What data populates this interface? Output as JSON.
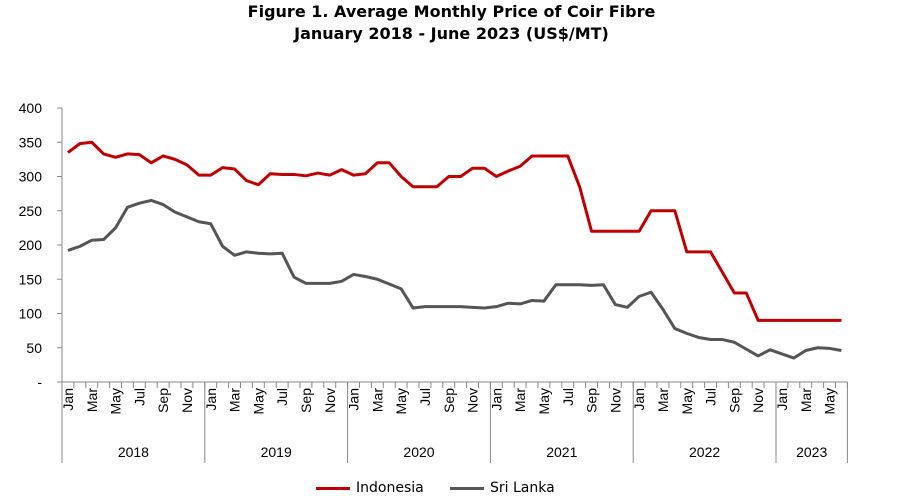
{
  "chart_data": {
    "type": "line",
    "title": "Figure 1. Average Monthly Price of Coir Fibre",
    "subtitle": "January 2018 - June 2023 (US$/MT)",
    "xlabel": "",
    "ylabel": "",
    "ylim": [
      0,
      400
    ],
    "yticks": [
      "-",
      "50",
      "100",
      "150",
      "200",
      "250",
      "300",
      "350",
      "400"
    ],
    "month_labels": [
      "Jan",
      "Mar",
      "May",
      "Jul",
      "Sep",
      "Nov"
    ],
    "years": [
      "2018",
      "2019",
      "2020",
      "2021",
      "2022",
      "2023"
    ],
    "months_per_year": [
      12,
      12,
      12,
      12,
      12,
      6
    ],
    "grid": false,
    "legend_position": "bottom",
    "series": [
      {
        "name": "Indonesia",
        "color": "#c00000",
        "values": [
          335,
          348,
          350,
          333,
          328,
          333,
          332,
          320,
          330,
          325,
          317,
          302,
          302,
          313,
          311,
          294,
          288,
          304,
          303,
          303,
          301,
          305,
          302,
          310,
          302,
          304,
          320,
          320,
          300,
          285,
          285,
          285,
          300,
          300,
          312,
          312,
          300,
          308,
          315,
          330,
          330,
          330,
          330,
          285,
          220,
          220,
          220,
          220,
          220,
          250,
          250,
          250,
          190,
          190,
          190,
          160,
          130,
          130,
          90,
          90,
          90,
          90,
          90,
          90,
          90,
          90
        ]
      },
      {
        "name": "Sri Lanka",
        "color": "#555555",
        "values": [
          192,
          198,
          207,
          208,
          225,
          255,
          261,
          265,
          259,
          248,
          241,
          234,
          231,
          198,
          185,
          190,
          188,
          187,
          188,
          153,
          144,
          144,
          144,
          147,
          157,
          154,
          150,
          143,
          136,
          108,
          110,
          110,
          110,
          110,
          109,
          108,
          110,
          115,
          114,
          119,
          118,
          142,
          142,
          142,
          141,
          142,
          113,
          109,
          125,
          131,
          106,
          78,
          71,
          65,
          62,
          62,
          58,
          48,
          38,
          47,
          41,
          35,
          46,
          50,
          49,
          46
        ]
      }
    ]
  }
}
